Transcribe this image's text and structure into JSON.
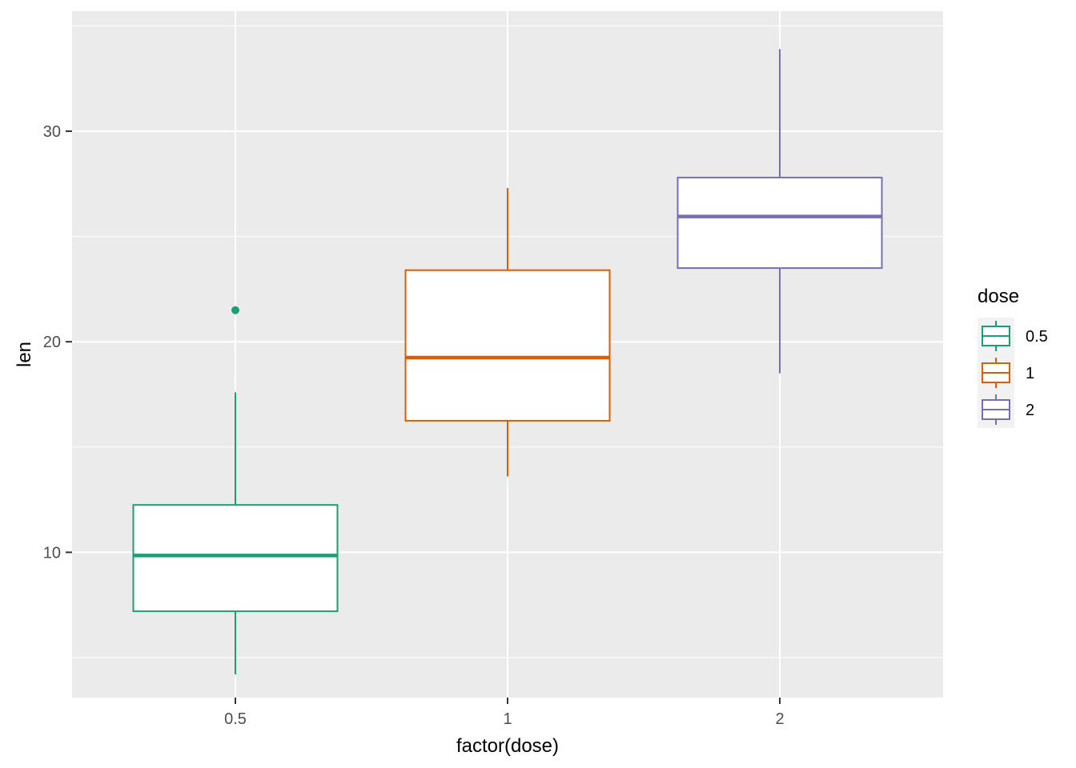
{
  "chart_data": {
    "type": "boxplot",
    "xlabel": "factor(dose)",
    "ylabel": "len",
    "ylim": [
      3.1,
      35.7
    ],
    "y_ticks": [
      10,
      20,
      30
    ],
    "grid": true,
    "legend": {
      "title": "dose",
      "placement": "right",
      "entries": [
        "0.5",
        "1",
        "2"
      ]
    },
    "categories": [
      "0.5",
      "1",
      "2"
    ],
    "boxes": [
      {
        "category": "0.5",
        "color": "#1B9E77",
        "whisker_low": 4.2,
        "q1": 7.2,
        "median": 9.85,
        "q3": 12.25,
        "whisker_high": 17.6,
        "outliers": [
          21.5
        ]
      },
      {
        "category": "1",
        "color": "#D95F02",
        "whisker_low": 13.6,
        "q1": 16.25,
        "median": 19.25,
        "q3": 23.4,
        "whisker_high": 27.3,
        "outliers": []
      },
      {
        "category": "2",
        "color": "#7570B3",
        "whisker_low": 18.5,
        "q1": 23.5,
        "median": 25.95,
        "q3": 27.8,
        "whisker_high": 33.9,
        "outliers": []
      }
    ]
  }
}
